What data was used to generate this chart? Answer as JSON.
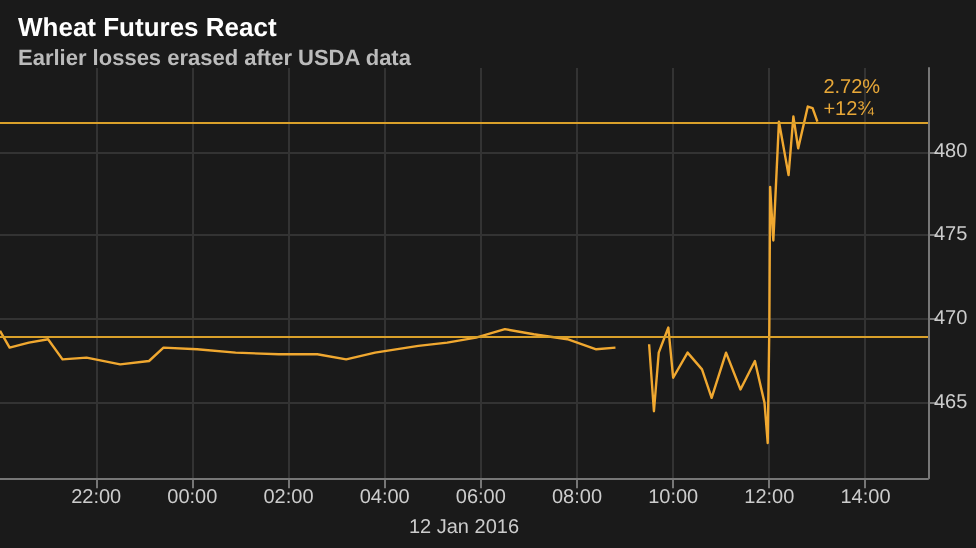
{
  "chart_data": {
    "type": "line",
    "title": "Wheat Futures React",
    "subtitle": "Earlier losses erased after USDA data",
    "xlabel": "12 Jan 2016",
    "x": [
      "2016-01-11T20:00",
      "2016-01-11T20:12",
      "2016-01-11T20:36",
      "2016-01-11T21:00",
      "2016-01-11T21:18",
      "2016-01-11T21:48",
      "2016-01-11T22:30",
      "2016-01-11T23:06",
      "2016-01-11T23:24",
      "2016-01-12T00:06",
      "2016-01-12T00:54",
      "2016-01-12T01:48",
      "2016-01-12T02:36",
      "2016-01-12T03:12",
      "2016-01-12T03:48",
      "2016-01-12T04:42",
      "2016-01-12T05:18",
      "2016-01-12T05:54",
      "2016-01-12T06:30",
      "2016-01-12T07:06",
      "2016-01-12T07:48",
      "2016-01-12T08:24",
      "2016-01-12T08:48",
      "2016-01-12T09:06",
      "2016-01-12T09:30",
      "2016-01-12T09:36",
      "2016-01-12T09:42",
      "2016-01-12T09:54",
      "2016-01-12T10:00",
      "2016-01-12T10:18",
      "2016-01-12T10:36",
      "2016-01-12T10:48",
      "2016-01-12T11:06",
      "2016-01-12T11:24",
      "2016-01-12T11:42",
      "2016-01-12T11:54",
      "2016-01-12T11:58",
      "2016-01-12T12:00",
      "2016-01-12T12:01",
      "2016-01-12T12:05",
      "2016-01-12T12:12",
      "2016-01-12T12:24",
      "2016-01-12T12:30",
      "2016-01-12T12:36",
      "2016-01-12T12:48",
      "2016-01-12T12:54",
      "2016-01-12T13:00"
    ],
    "series": [
      {
        "color": "#f0a830",
        "values": [
          469.3,
          468.3,
          468.6,
          468.8,
          467.6,
          467.7,
          467.3,
          467.5,
          468.3,
          468.2,
          468.0,
          467.9,
          467.9,
          467.6,
          468.0,
          468.4,
          468.6,
          468.9,
          469.4,
          469.1,
          468.8,
          468.2,
          468.3,
          null,
          468.5,
          464.5,
          468.0,
          469.5,
          466.5,
          468.0,
          467.0,
          465.3,
          468.0,
          465.8,
          467.5,
          465.0,
          462.6,
          469.5,
          477.9,
          474.7,
          481.8,
          478.6,
          482.1,
          480.2,
          482.7,
          482.6,
          481.8
        ]
      }
    ],
    "xlim": [
      "2016-01-11T20:00",
      "2016-01-12T15:18"
    ],
    "xticks": [
      {
        "value": "2016-01-11T22:00",
        "label": "22:00"
      },
      {
        "value": "2016-01-12T00:00",
        "label": "00:00"
      },
      {
        "value": "2016-01-12T02:00",
        "label": "02:00"
      },
      {
        "value": "2016-01-12T04:00",
        "label": "04:00"
      },
      {
        "value": "2016-01-12T06:00",
        "label": "06:00"
      },
      {
        "value": "2016-01-12T08:00",
        "label": "08:00"
      },
      {
        "value": "2016-01-12T10:00",
        "label": "10:00"
      },
      {
        "value": "2016-01-12T12:00",
        "label": "12:00"
      },
      {
        "value": "2016-01-12T14:00",
        "label": "14:00"
      }
    ],
    "ylim": [
      460.5,
      485
    ],
    "yticks": [
      465,
      470,
      475,
      480
    ],
    "ref_lines": [
      {
        "axis": "y",
        "value": 469,
        "color": "#d9a02a"
      },
      {
        "axis": "y",
        "value": 481.75,
        "color": "#d9a02a"
      }
    ],
    "annotations": [
      {
        "text": "2.72%",
        "x": "2016-01-12T13:00",
        "y": 481.75
      },
      {
        "text": "+12¾",
        "x": "2016-01-12T13:00",
        "y": 481.75
      }
    ],
    "grid": true,
    "marker": "none",
    "line_style": "solid"
  }
}
